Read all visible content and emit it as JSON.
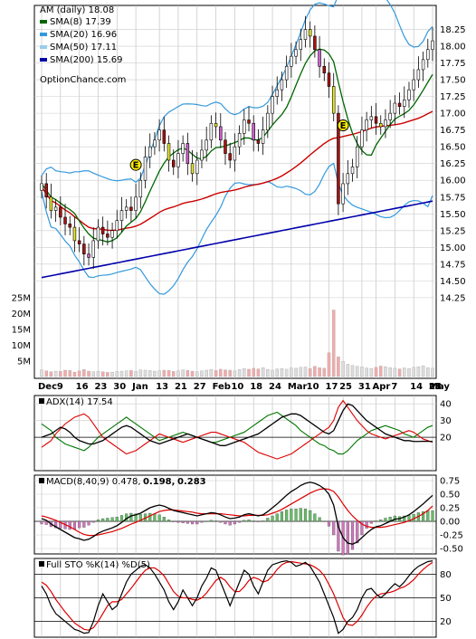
{
  "chart_data": [
    {
      "type": "candlestick",
      "title": "AM (daily) 18.08",
      "legend": [
        {
          "name": "SMA(8) 17.39",
          "color": "#006600"
        },
        {
          "name": "SMA(20) 16.96",
          "color": "#3399dd"
        },
        {
          "name": "SMA(50) 17.11",
          "color": "#99ccee"
        },
        {
          "name": "SMA(200) 15.69",
          "color": "#0000aa"
        }
      ],
      "source": "OptionChance.com",
      "y_ticks": [
        "18.25",
        "18.00",
        "17.75",
        "17.50",
        "17.25",
        "17.00",
        "16.75",
        "16.50",
        "16.25",
        "16.00",
        "15.75",
        "15.50",
        "15.25",
        "15.00",
        "14.75",
        "14.50",
        "14.25"
      ],
      "ylim": [
        14.1,
        18.5
      ],
      "volume_ticks": [
        "25M",
        "20M",
        "15M",
        "10M",
        "5M"
      ],
      "volume_max": 28,
      "dates": [
        "Dec",
        "9",
        "16",
        "23",
        "30",
        "Jan",
        "13",
        "21",
        "27",
        "Feb",
        "10",
        "18",
        "24",
        "Mar",
        "10",
        "17",
        "25",
        "31",
        "Apr",
        "7",
        "14",
        "21",
        "28",
        "May"
      ],
      "close": [
        15.95,
        15.75,
        15.55,
        15.6,
        15.45,
        15.35,
        15.3,
        15.1,
        15.05,
        14.9,
        14.85,
        15.1,
        15.3,
        15.2,
        15.15,
        15.25,
        15.4,
        15.55,
        15.6,
        15.55,
        15.75,
        16.0,
        16.35,
        16.5,
        16.6,
        16.75,
        16.55,
        16.3,
        16.2,
        16.4,
        16.55,
        16.25,
        16.1,
        16.3,
        16.45,
        16.6,
        16.85,
        16.8,
        16.6,
        16.4,
        16.3,
        16.5,
        16.7,
        16.9,
        16.85,
        16.6,
        16.55,
        16.75,
        17.0,
        17.25,
        17.35,
        17.5,
        17.7,
        17.85,
        17.95,
        18.1,
        18.25,
        18.15,
        17.95,
        17.7,
        17.6,
        17.4,
        17.0,
        15.65,
        15.95,
        16.1,
        16.2,
        16.5,
        16.75,
        16.9,
        16.95,
        16.85,
        16.8,
        16.9,
        17.0,
        17.15,
        17.1,
        17.2,
        17.35,
        17.5,
        17.65,
        17.8,
        17.95,
        18.08
      ],
      "volume": [
        2.1,
        1.8,
        1.5,
        1.7,
        1.6,
        2.0,
        1.9,
        1.4,
        1.8,
        2.2,
        1.7,
        1.5,
        1.6,
        1.5,
        1.3,
        1.4,
        1.6,
        1.7,
        1.8,
        1.9,
        1.6,
        2.1,
        2.0,
        1.9,
        1.7,
        1.8,
        2.0,
        1.9,
        1.6,
        1.8,
        2.1,
        1.9,
        1.7,
        1.5,
        1.8,
        2.0,
        2.2,
        1.9,
        2.3,
        2.1,
        2.0,
        1.8,
        2.2,
        2.5,
        2.3,
        2.6,
        2.4,
        2.8,
        2.2,
        2.0,
        2.4,
        2.5,
        2.3,
        2.7,
        2.6,
        2.9,
        3.0,
        2.5,
        3.2,
        2.8,
        2.6,
        7.5,
        21.0,
        6.2,
        4.8,
        3.9,
        3.5,
        3.2,
        3.0,
        2.7,
        2.5,
        2.9,
        3.3,
        3.1,
        2.8,
        2.6,
        2.4,
        2.7,
        2.5,
        2.9,
        3.1,
        3.4,
        2.8,
        2.6
      ]
    },
    {
      "type": "line",
      "title": "ADX(14) 17.54",
      "y_ticks": [
        "40",
        "30",
        "20"
      ],
      "ylim": [
        0,
        45
      ],
      "adx": [
        20,
        21,
        22,
        24,
        26,
        25,
        23,
        20,
        18,
        17,
        16,
        16,
        17,
        18,
        20,
        22,
        24,
        26,
        27,
        26,
        24,
        22,
        20,
        18,
        17,
        16,
        17,
        18,
        19,
        20,
        21,
        22,
        21,
        20,
        19,
        18,
        17,
        16,
        15,
        15,
        16,
        17,
        18,
        19,
        20,
        21,
        22,
        24,
        26,
        28,
        30,
        32,
        33,
        34,
        34,
        33,
        31,
        29,
        27,
        25,
        23,
        22,
        24,
        30,
        36,
        40,
        39,
        36,
        33,
        30,
        28,
        26,
        24,
        22,
        21,
        20,
        19,
        18,
        18,
        17.5,
        17.5,
        17.6,
        17.54,
        17.54
      ],
      "plus_di": [
        28,
        26,
        24,
        20,
        18,
        16,
        15,
        14,
        13,
        12,
        14,
        17,
        20,
        22,
        24,
        26,
        28,
        30,
        32,
        30,
        28,
        26,
        24,
        22,
        20,
        18,
        19,
        20,
        21,
        22,
        23,
        22,
        21,
        20,
        19,
        18,
        17,
        17,
        18,
        19,
        20,
        21,
        22,
        23,
        25,
        27,
        29,
        31,
        33,
        34,
        35,
        33,
        31,
        29,
        27,
        24,
        22,
        20,
        18,
        16,
        15,
        13,
        12,
        10,
        10,
        12,
        15,
        18,
        20,
        22,
        24,
        25,
        26,
        27,
        26,
        25,
        24,
        22,
        21,
        20,
        22,
        24,
        26,
        27
      ],
      "minus_di": [
        14,
        16,
        18,
        22,
        25,
        28,
        30,
        32,
        33,
        34,
        32,
        28,
        24,
        20,
        18,
        16,
        14,
        12,
        10,
        11,
        12,
        14,
        16,
        18,
        20,
        22,
        21,
        20,
        19,
        18,
        17,
        18,
        19,
        20,
        21,
        22,
        23,
        23,
        22,
        21,
        20,
        19,
        18,
        17,
        15,
        13,
        11,
        10,
        9,
        8,
        7,
        8,
        9,
        10,
        12,
        14,
        16,
        18,
        20,
        22,
        24,
        26,
        30,
        38,
        42,
        38,
        34,
        30,
        27,
        24,
        22,
        21,
        20,
        19,
        20,
        21,
        22,
        23,
        24,
        23,
        21,
        19,
        18,
        17
      ]
    },
    {
      "type": "line",
      "title": "MACD(8,40,9) 0.478,",
      "label_macd": "0.198,",
      "label_signal": "0.283",
      "y_ticks": [
        "0.75",
        "0.50",
        "0.25",
        "0.00",
        "-0.25",
        "-0.50"
      ],
      "ylim": [
        -0.6,
        0.85
      ],
      "macd": [
        0.05,
        0.02,
        -0.05,
        -0.1,
        -0.15,
        -0.2,
        -0.25,
        -0.3,
        -0.32,
        -0.35,
        -0.33,
        -0.28,
        -0.22,
        -0.18,
        -0.15,
        -0.12,
        -0.08,
        -0.02,
        0.05,
        0.1,
        0.12,
        0.15,
        0.2,
        0.25,
        0.28,
        0.3,
        0.28,
        0.24,
        0.2,
        0.18,
        0.16,
        0.14,
        0.12,
        0.1,
        0.12,
        0.14,
        0.16,
        0.15,
        0.12,
        0.08,
        0.05,
        0.06,
        0.08,
        0.12,
        0.14,
        0.12,
        0.1,
        0.12,
        0.18,
        0.25,
        0.32,
        0.4,
        0.48,
        0.55,
        0.6,
        0.66,
        0.7,
        0.72,
        0.7,
        0.66,
        0.6,
        0.5,
        0.3,
        -0.1,
        -0.3,
        -0.4,
        -0.42,
        -0.38,
        -0.3,
        -0.22,
        -0.15,
        -0.1,
        -0.08,
        -0.04,
        0.0,
        0.04,
        0.05,
        0.08,
        0.12,
        0.18,
        0.25,
        0.32,
        0.4,
        0.478
      ],
      "signal": [
        0.1,
        0.08,
        0.05,
        0.02,
        -0.02,
        -0.06,
        -0.1,
        -0.15,
        -0.2,
        -0.24,
        -0.26,
        -0.26,
        -0.25,
        -0.23,
        -0.21,
        -0.19,
        -0.16,
        -0.13,
        -0.09,
        -0.05,
        -0.02,
        0.02,
        0.06,
        0.1,
        0.14,
        0.18,
        0.2,
        0.21,
        0.21,
        0.2,
        0.19,
        0.18,
        0.17,
        0.15,
        0.14,
        0.14,
        0.14,
        0.14,
        0.14,
        0.13,
        0.12,
        0.11,
        0.1,
        0.1,
        0.11,
        0.11,
        0.11,
        0.11,
        0.12,
        0.15,
        0.18,
        0.22,
        0.27,
        0.32,
        0.37,
        0.42,
        0.47,
        0.52,
        0.56,
        0.59,
        0.6,
        0.59,
        0.55,
        0.45,
        0.32,
        0.2,
        0.1,
        0.02,
        -0.05,
        -0.09,
        -0.11,
        -0.11,
        -0.11,
        -0.1,
        -0.08,
        -0.06,
        -0.04,
        -0.02,
        0.01,
        0.05,
        0.09,
        0.14,
        0.2,
        0.283
      ]
    },
    {
      "type": "line",
      "title": "Full STO %K(14) %D(5)",
      "y_ticks": [
        "80",
        "50",
        "20"
      ],
      "ylim": [
        0,
        100
      ],
      "k": [
        65,
        55,
        40,
        30,
        25,
        20,
        15,
        10,
        8,
        5,
        6,
        20,
        40,
        55,
        45,
        35,
        40,
        55,
        70,
        80,
        85,
        90,
        92,
        88,
        80,
        70,
        60,
        45,
        35,
        45,
        60,
        50,
        40,
        50,
        65,
        75,
        88,
        85,
        70,
        55,
        40,
        55,
        70,
        85,
        80,
        65,
        55,
        70,
        85,
        92,
        94,
        96,
        97,
        95,
        90,
        92,
        95,
        90,
        80,
        70,
        55,
        40,
        25,
        5,
        10,
        20,
        25,
        35,
        50,
        60,
        62,
        55,
        50,
        55,
        62,
        68,
        64,
        70,
        78,
        85,
        90,
        93,
        96,
        97
      ],
      "d": [
        70,
        66,
        58,
        48,
        40,
        32,
        25,
        18,
        14,
        10,
        9,
        12,
        20,
        30,
        40,
        45,
        45,
        48,
        55,
        62,
        70,
        78,
        85,
        88,
        88,
        84,
        78,
        68,
        58,
        52,
        50,
        50,
        48,
        47,
        50,
        56,
        64,
        72,
        76,
        72,
        64,
        58,
        58,
        64,
        72,
        76,
        74,
        70,
        72,
        78,
        86,
        92,
        95,
        96,
        95,
        94,
        93,
        92,
        89,
        85,
        78,
        67,
        55,
        40,
        25,
        16,
        15,
        20,
        28,
        38,
        46,
        52,
        55,
        56,
        57,
        59,
        62,
        64,
        68,
        73,
        80,
        86,
        91,
        95
      ]
    }
  ]
}
